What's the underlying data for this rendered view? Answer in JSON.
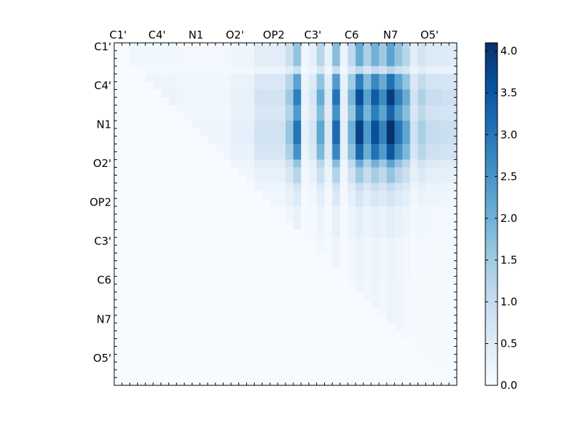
{
  "chart_data": {
    "type": "heatmap",
    "labels": [
      "C1'",
      "C4'",
      "N1",
      "O2'",
      "OP2",
      "C3'",
      "C6",
      "N7",
      "O5'"
    ],
    "label_positions": [
      0.5,
      5.5,
      10.5,
      15.5,
      20.5,
      25.5,
      30.5,
      35.5,
      40.5
    ],
    "grid_size": 44,
    "colorbar": {
      "min": 0.0,
      "max": 4.1,
      "ticks": [
        "0.0",
        "0.5",
        "1.0",
        "1.5",
        "2.0",
        "2.5",
        "3.0",
        "3.5",
        "4.0"
      ],
      "colormap": "Blues"
    },
    "row_blocks": [
      {
        "rows": [
          0,
          2
        ],
        "level": 0.55
      },
      {
        "rows": [
          3,
          3
        ],
        "level": 0.3
      },
      {
        "rows": [
          4,
          5
        ],
        "level": 0.75
      },
      {
        "rows": [
          6,
          7
        ],
        "level": 0.95
      },
      {
        "rows": [
          8,
          9
        ],
        "level": 0.8
      },
      {
        "rows": [
          10,
          12
        ],
        "level": 1.0
      },
      {
        "rows": [
          13,
          14
        ],
        "level": 0.85
      },
      {
        "rows": [
          15,
          15
        ],
        "level": 0.55
      },
      {
        "rows": [
          16,
          17
        ],
        "level": 0.4
      },
      {
        "rows": [
          18,
          18
        ],
        "level": 0.25
      },
      {
        "rows": [
          19,
          20
        ],
        "level": 0.18
      },
      {
        "rows": [
          21,
          24
        ],
        "level": 0.1
      },
      {
        "rows": [
          25,
          29
        ],
        "level": 0.06
      },
      {
        "rows": [
          30,
          43
        ],
        "level": 0.05
      }
    ],
    "column_profile": [
      {
        "cols": [
          0,
          1
        ],
        "value": 0.0
      },
      {
        "cols": [
          2,
          7
        ],
        "value": 0.25
      },
      {
        "cols": [
          8,
          14
        ],
        "value": 0.18
      },
      {
        "cols": [
          15,
          17
        ],
        "value": 0.35
      },
      {
        "cols": [
          18,
          21
        ],
        "value": 0.8
      },
      {
        "cols": [
          22,
          22
        ],
        "value": 1.6
      },
      {
        "cols": [
          23,
          23
        ],
        "value": 3.0
      },
      {
        "cols": [
          24,
          24
        ],
        "value": 0.3
      },
      {
        "cols": [
          25,
          25
        ],
        "value": 0.7
      },
      {
        "cols": [
          26,
          26
        ],
        "value": 2.2
      },
      {
        "cols": [
          27,
          27
        ],
        "value": 0.6
      },
      {
        "cols": [
          28,
          28
        ],
        "value": 3.2
      },
      {
        "cols": [
          29,
          29
        ],
        "value": 0.4
      },
      {
        "cols": [
          30,
          30
        ],
        "value": 2.0
      },
      {
        "cols": [
          31,
          31
        ],
        "value": 3.8
      },
      {
        "cols": [
          32,
          32
        ],
        "value": 2.4
      },
      {
        "cols": [
          33,
          33
        ],
        "value": 3.6
      },
      {
        "cols": [
          34,
          34
        ],
        "value": 2.8
      },
      {
        "cols": [
          35,
          35
        ],
        "value": 4.1
      },
      {
        "cols": [
          36,
          36
        ],
        "value": 3.0
      },
      {
        "cols": [
          37,
          37
        ],
        "value": 2.2
      },
      {
        "cols": [
          38,
          38
        ],
        "value": 0.8
      },
      {
        "cols": [
          39,
          39
        ],
        "value": 1.4
      },
      {
        "cols": [
          40,
          41
        ],
        "value": 1.0
      },
      {
        "cols": [
          42,
          43
        ],
        "value": 0.9
      }
    ],
    "upper_triangle_only": true,
    "grid": false
  }
}
